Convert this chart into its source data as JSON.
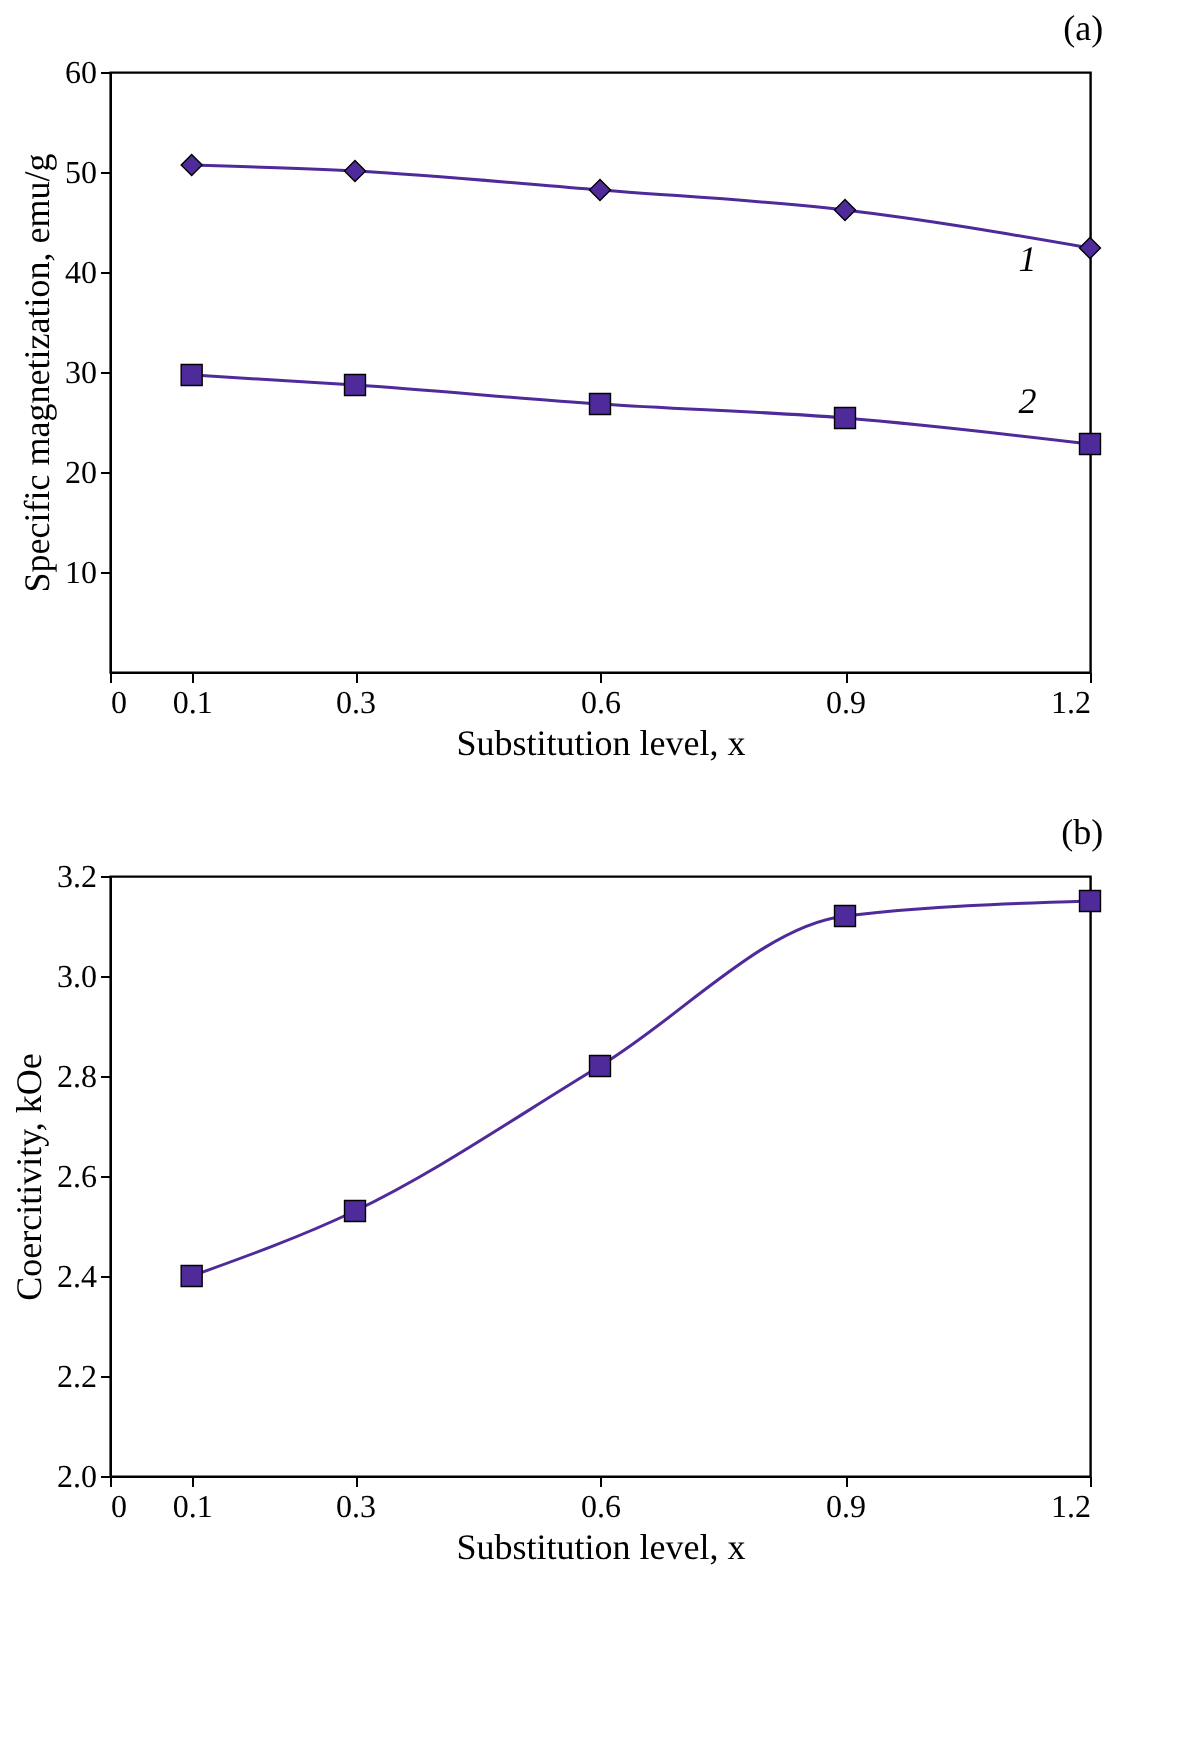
{
  "chart_data": [
    {
      "type": "line",
      "title": "(a)",
      "xlabel": "Substitution level, x",
      "ylabel": "Specific magnetization, emu/g",
      "x": [
        0.1,
        0.3,
        0.6,
        0.9,
        1.2
      ],
      "series": [
        {
          "name": "1",
          "color": "#4f2a9a",
          "marker": "diamond",
          "values": [
            50.7,
            50.1,
            48.2,
            46.2,
            42.4
          ]
        },
        {
          "name": "2",
          "color": "#4f2a9a",
          "marker": "square",
          "values": [
            29.7,
            28.7,
            26.8,
            25.4,
            22.8
          ]
        }
      ],
      "xlim": [
        0,
        1.2
      ],
      "xticks": [
        0,
        0.1,
        0.3,
        0.6,
        0.9,
        1.2
      ],
      "ylim": [
        0,
        60
      ],
      "yticks": [
        10,
        20,
        30,
        40,
        50,
        60
      ],
      "grid": false
    },
    {
      "type": "line",
      "title": "(b)",
      "xlabel": "Substitution level, x",
      "ylabel": "Coercitivity, kOe",
      "x": [
        0.1,
        0.3,
        0.6,
        0.9,
        1.2
      ],
      "series": [
        {
          "color": "#4f2a9a",
          "marker": "square",
          "values": [
            2.4,
            2.53,
            2.82,
            3.12,
            3.15
          ]
        }
      ],
      "xlim": [
        0,
        1.2
      ],
      "xticks": [
        0,
        0.1,
        0.3,
        0.6,
        0.9,
        1.2
      ],
      "ylim": [
        2.0,
        3.2
      ],
      "yticks": [
        {
          "value": 2,
          "label": "2.0"
        },
        2.2,
        2.4,
        2.6,
        2.8,
        {
          "value": 3,
          "label": "3.0"
        },
        3.2
      ],
      "grid": false
    }
  ]
}
